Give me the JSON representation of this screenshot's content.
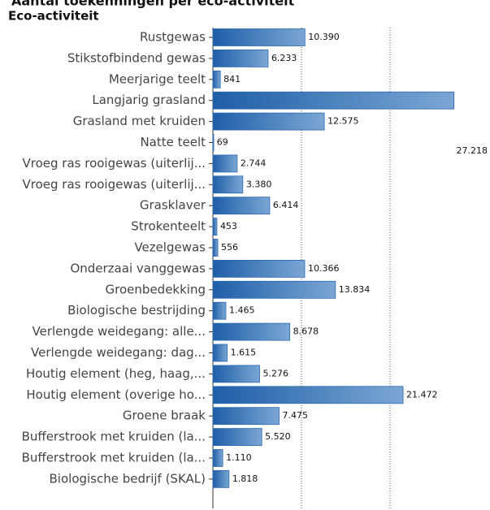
{
  "chart_data": {
    "type": "bar",
    "orientation": "horizontal",
    "title": "Aantal toekenningen per eco-activiteit",
    "ylabel": "Eco-activiteit",
    "categories": [
      "Rustgewas",
      "Stikstofbindend gewas",
      "Meerjarige teelt",
      "Langjarig grasland",
      "Grasland met kruiden",
      "Natte teelt",
      "Vroeg ras rooigewas (uiterlij...",
      "Vroeg ras rooigewas (uiterlij...",
      "Grasklaver",
      "Strokenteelt",
      "Vezelgewas",
      "Onderzaai vanggewas",
      "Groenbedekking",
      "Biologische bestrijding",
      "Verlengde weidegang: alle...",
      "Verlengde weidegang: dag...",
      "Houtig element (heg, haag,...",
      "Houtig element (overige ho...",
      "Groene braak",
      "Bufferstrook met kruiden (la...",
      "Bufferstrook met kruiden (la...",
      "Biologische bedrijf (SKAL)"
    ],
    "values": [
      10390,
      6233,
      841,
      27218,
      12575,
      69,
      2744,
      3380,
      6414,
      453,
      556,
      10366,
      13834,
      1465,
      8678,
      1615,
      5276,
      21472,
      7475,
      5520,
      1110,
      1818
    ],
    "value_labels": [
      "10.390",
      "6.233",
      "841",
      "27.218",
      "12.575",
      "69",
      "2.744",
      "3.380",
      "6.414",
      "453",
      "556",
      "10.366",
      "13.834",
      "1.465",
      "8.678",
      "1.615",
      "5.276",
      "21.472",
      "7.475",
      "5.520",
      "1.110",
      "1.818"
    ],
    "color": "#2a69b0",
    "xlim": [
      0,
      30000
    ],
    "xticks": [
      10000,
      20000
    ],
    "grid": true
  }
}
